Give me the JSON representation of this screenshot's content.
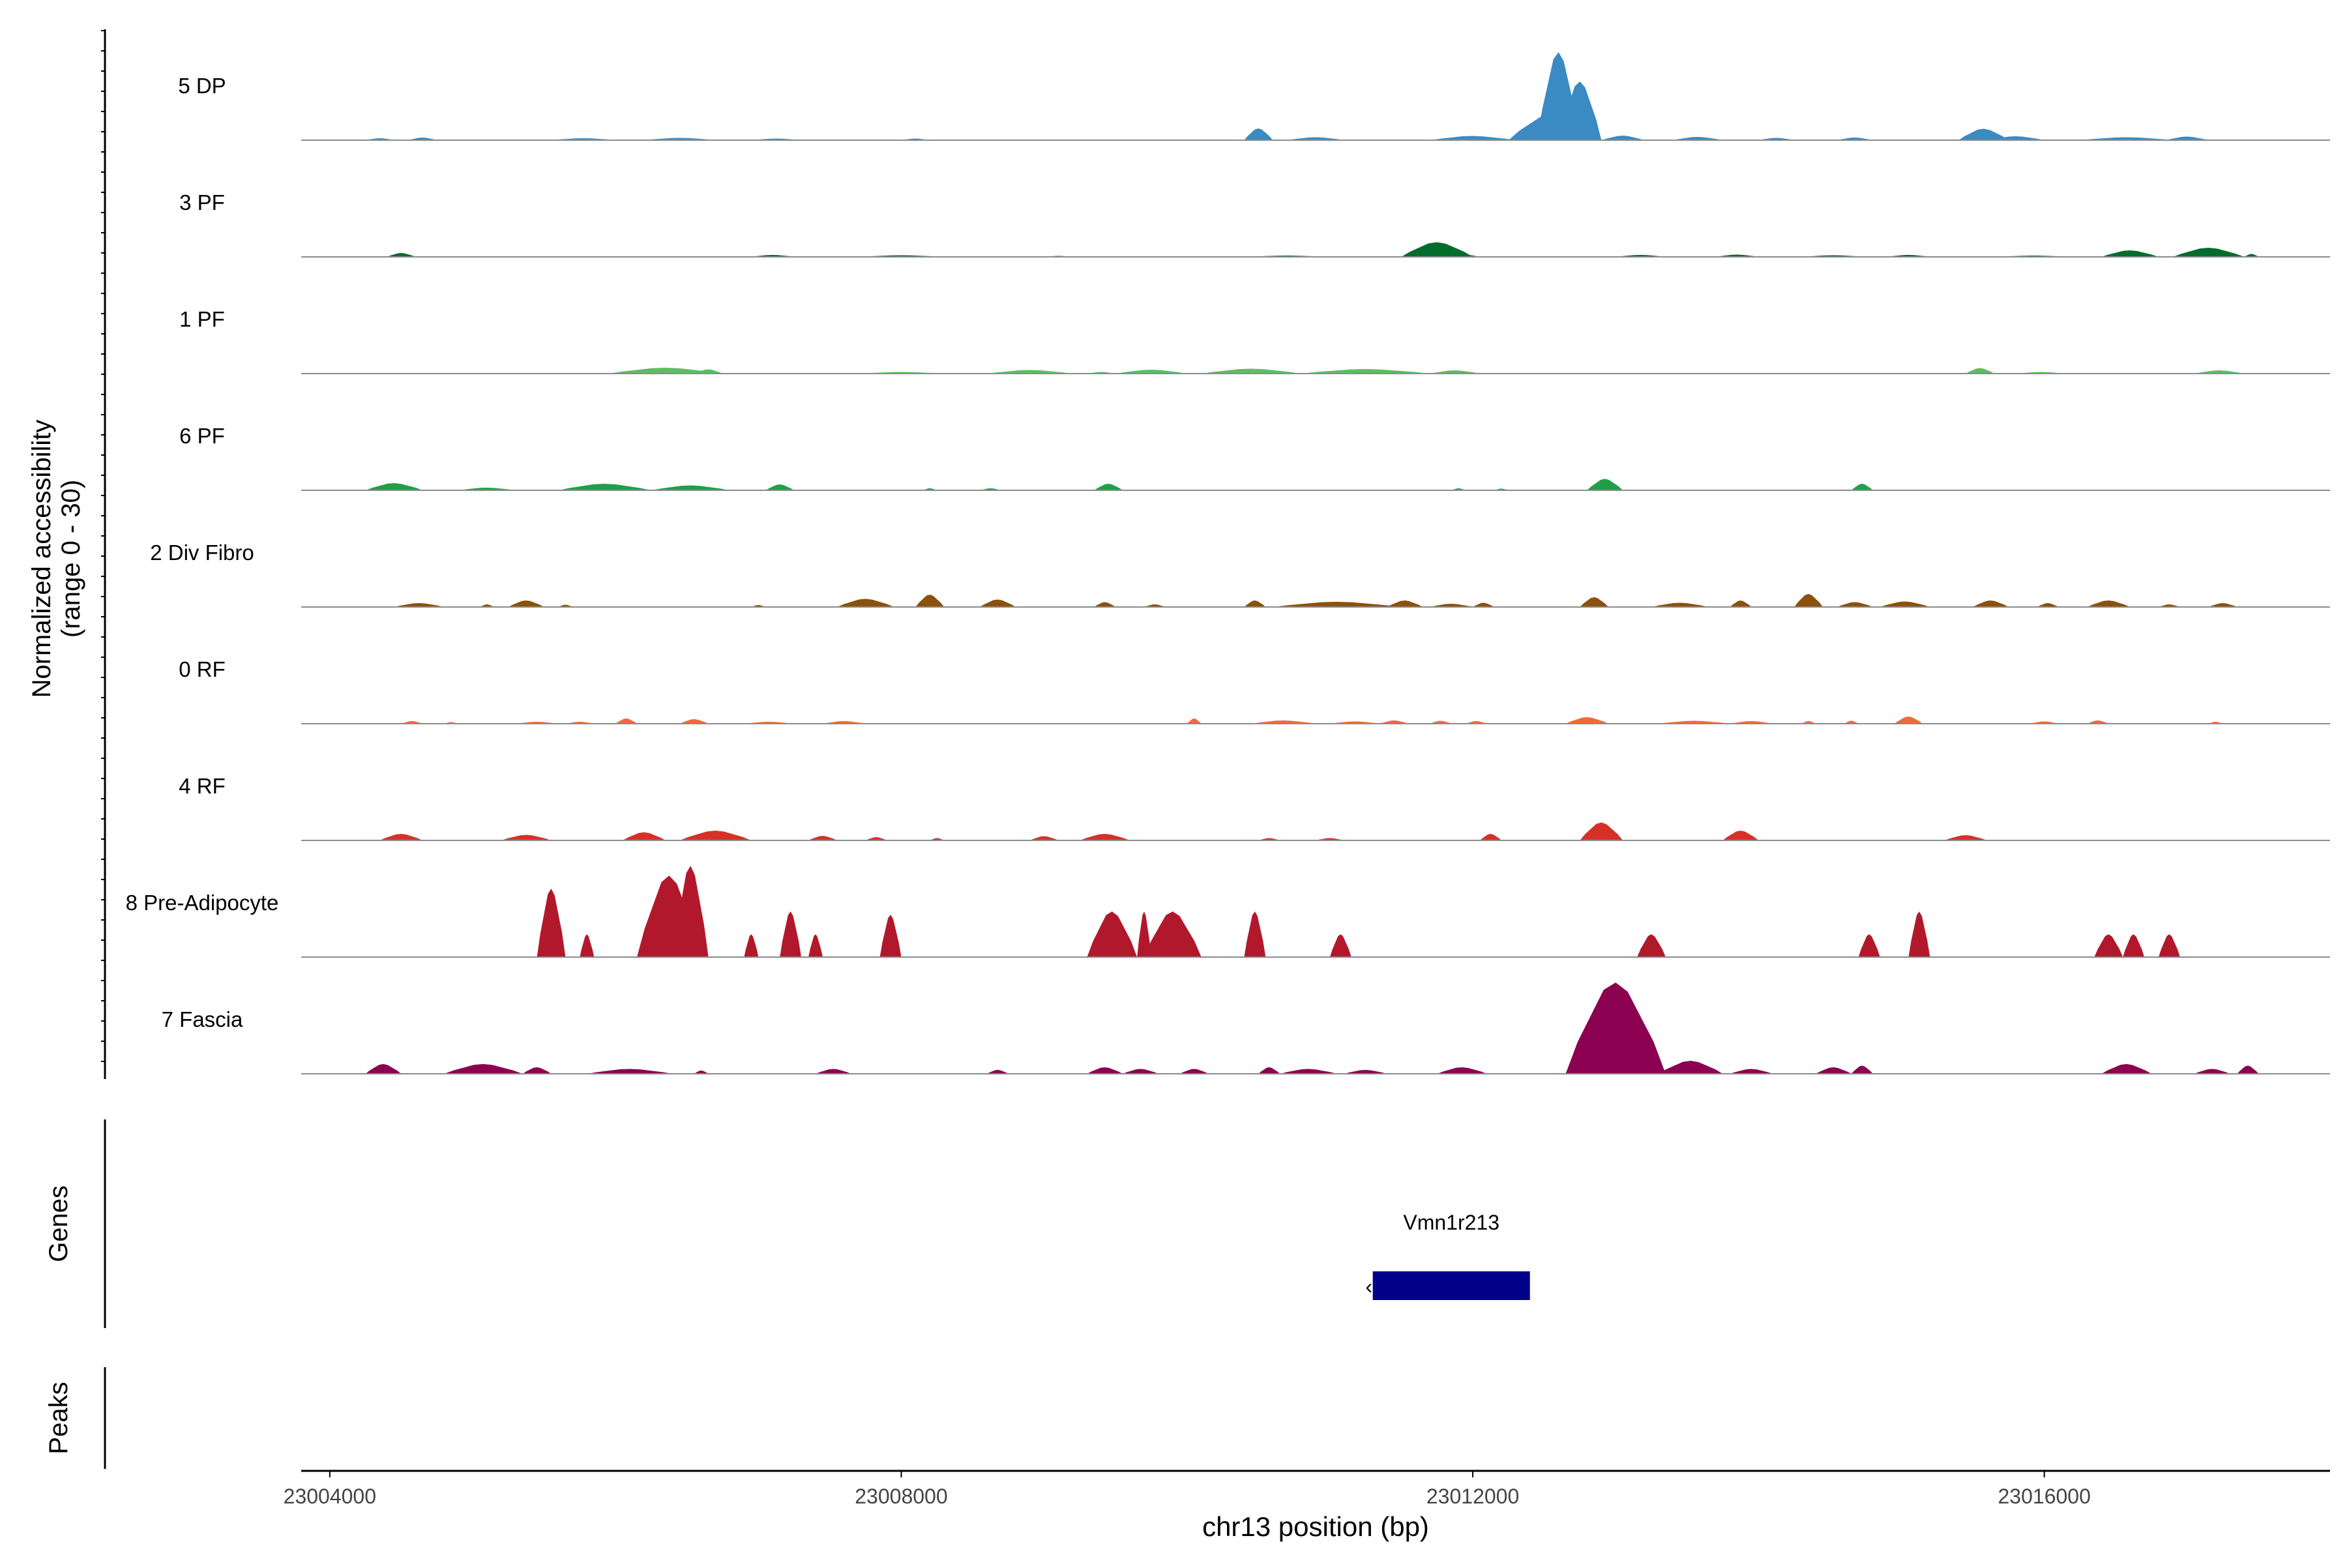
{
  "chart_data": {
    "type": "area",
    "ylabel_line1": "Normalized accessibility",
    "ylabel_line2": "(range 0 - 30)",
    "y_range": [
      0,
      30
    ],
    "xlabel": "chr13 position (bp)",
    "x_range": [
      23003800,
      23018000
    ],
    "x_ticks": [
      {
        "value": 23004000,
        "label": "23004000"
      },
      {
        "value": 23008000,
        "label": "23008000"
      },
      {
        "value": 23012000,
        "label": "23012000"
      },
      {
        "value": 23016000,
        "label": "23016000"
      }
    ],
    "tracks_label": "Genes",
    "peaks_label": "Peaks",
    "tracks": [
      {
        "name": "5 DP",
        "color": "#3a8ac4",
        "peaks": [
          [
            23004250,
            23004450,
            0.6
          ],
          [
            23004550,
            23004750,
            0.8
          ],
          [
            23005550,
            23006000,
            0.6
          ],
          [
            23006200,
            23006700,
            0.7
          ],
          [
            23006950,
            23007300,
            0.5
          ],
          [
            23008000,
            23008200,
            0.5
          ],
          [
            23010400,
            23010600,
            3.6
          ],
          [
            23010700,
            23011100,
            0.9
          ],
          [
            23011700,
            23012300,
            1.3
          ],
          [
            23012250,
            23012900,
            8.5
          ],
          [
            23012450,
            23012750,
            27
          ],
          [
            23012600,
            23012900,
            18
          ],
          [
            23012900,
            23013200,
            1.4
          ],
          [
            23013400,
            23013750,
            1.0
          ],
          [
            23014000,
            23014250,
            0.7
          ],
          [
            23014550,
            23014800,
            0.8
          ],
          [
            23015400,
            23015750,
            3.5
          ],
          [
            23015600,
            23016000,
            1.2
          ],
          [
            23016250,
            23016900,
            0.9
          ],
          [
            23016850,
            23017150,
            1.1
          ]
        ]
      },
      {
        "name": "3 PF",
        "color": "#006d2c",
        "peaks": [
          [
            23004400,
            23004600,
            1.2
          ],
          [
            23006950,
            23007250,
            0.6
          ],
          [
            23007700,
            23008300,
            0.5
          ],
          [
            23009000,
            23009200,
            0.3
          ],
          [
            23010400,
            23011000,
            0.4
          ],
          [
            23011500,
            23012000,
            4.5
          ],
          [
            23011800,
            23012050,
            0.8
          ],
          [
            23013000,
            23013350,
            0.6
          ],
          [
            23013700,
            23014000,
            0.7
          ],
          [
            23014300,
            23014750,
            0.5
          ],
          [
            23014900,
            23015200,
            0.6
          ],
          [
            23015650,
            23016200,
            0.4
          ],
          [
            23016400,
            23016800,
            2.0
          ],
          [
            23016900,
            23017400,
            2.8
          ],
          [
            23017400,
            23017500,
            0.9
          ]
        ]
      },
      {
        "name": "1 PF",
        "color": "#5bbf60",
        "peaks": [
          [
            23005950,
            23006750,
            1.8
          ],
          [
            23006550,
            23006750,
            1.3
          ],
          [
            23007700,
            23008300,
            0.5
          ],
          [
            23008600,
            23009200,
            1.1
          ],
          [
            23009300,
            23009500,
            0.5
          ],
          [
            23009500,
            23010000,
            1.2
          ],
          [
            23010100,
            23010800,
            1.5
          ],
          [
            23010800,
            23011700,
            1.4
          ],
          [
            23011700,
            23012050,
            1.0
          ],
          [
            23015450,
            23015650,
            1.7
          ],
          [
            23015800,
            23016150,
            0.5
          ],
          [
            23017050,
            23017400,
            1.0
          ]
        ]
      },
      {
        "name": "6 PF",
        "color": "#229e49",
        "peaks": [
          [
            23004250,
            23004650,
            2.2
          ],
          [
            23004900,
            23005300,
            0.8
          ],
          [
            23005600,
            23006250,
            2.0
          ],
          [
            23006250,
            23006800,
            1.5
          ],
          [
            23007050,
            23007250,
            1.8
          ],
          [
            23008150,
            23008250,
            0.6
          ],
          [
            23008550,
            23008700,
            0.6
          ],
          [
            23009350,
            23009550,
            2.0
          ],
          [
            23011850,
            23011950,
            0.6
          ],
          [
            23012150,
            23012250,
            0.5
          ],
          [
            23012800,
            23013050,
            3.5
          ],
          [
            23014650,
            23014800,
            2.0
          ]
        ]
      },
      {
        "name": "2 Div Fibro",
        "color": "#8c510a",
        "peaks": [
          [
            23004450,
            23004800,
            1.2
          ],
          [
            23005050,
            23005150,
            0.8
          ],
          [
            23005250,
            23005500,
            2.0
          ],
          [
            23005600,
            23005700,
            0.7
          ],
          [
            23006950,
            23007050,
            0.6
          ],
          [
            23007550,
            23007950,
            2.5
          ],
          [
            23008100,
            23008300,
            3.8
          ],
          [
            23008550,
            23008800,
            2.3
          ],
          [
            23009350,
            23009500,
            1.5
          ],
          [
            23009700,
            23009850,
            0.8
          ],
          [
            23010400,
            23010550,
            2.0
          ],
          [
            23010600,
            23011500,
            1.6
          ],
          [
            23011400,
            23011650,
            2.0
          ],
          [
            23011700,
            23012000,
            1.0
          ],
          [
            23012000,
            23012150,
            1.3
          ],
          [
            23012750,
            23012950,
            3.0
          ],
          [
            23013250,
            23013650,
            1.3
          ],
          [
            23013800,
            23013950,
            2.0
          ],
          [
            23014250,
            23014450,
            4.0
          ],
          [
            23014550,
            23014800,
            1.5
          ],
          [
            23014850,
            23015200,
            1.7
          ],
          [
            23015500,
            23015750,
            2.0
          ],
          [
            23015950,
            23016100,
            1.2
          ],
          [
            23016300,
            23016600,
            2.0
          ],
          [
            23016800,
            23016950,
            0.8
          ],
          [
            23017150,
            23017350,
            1.2
          ]
        ]
      },
      {
        "name": "0 RF",
        "color": "#f16a3a",
        "peaks": [
          [
            23004500,
            23004650,
            0.8
          ],
          [
            23004800,
            23004900,
            0.5
          ],
          [
            23005300,
            23005600,
            0.6
          ],
          [
            23005650,
            23005850,
            0.6
          ],
          [
            23006000,
            23006150,
            1.6
          ],
          [
            23006450,
            23006650,
            1.4
          ],
          [
            23006900,
            23007250,
            0.6
          ],
          [
            23007450,
            23007750,
            0.8
          ],
          [
            23010000,
            23010100,
            1.6
          ],
          [
            23010450,
            23010900,
            1.0
          ],
          [
            23011000,
            23011350,
            0.7
          ],
          [
            23011350,
            23011550,
            1.0
          ],
          [
            23011700,
            23011850,
            0.9
          ],
          [
            23011950,
            23012100,
            0.8
          ],
          [
            23012650,
            23012950,
            2.0
          ],
          [
            23013300,
            23013800,
            0.9
          ],
          [
            23013800,
            23014100,
            0.8
          ],
          [
            23014300,
            23014400,
            0.8
          ],
          [
            23014600,
            23014700,
            0.9
          ],
          [
            23014950,
            23015150,
            2.2
          ],
          [
            23015900,
            23016100,
            0.7
          ],
          [
            23016300,
            23016450,
            1.0
          ],
          [
            23017150,
            23017250,
            0.6
          ]
        ]
      },
      {
        "name": "4 RF",
        "color": "#d73027",
        "peaks": [
          [
            23004350,
            23004650,
            2.0
          ],
          [
            23005200,
            23005550,
            1.7
          ],
          [
            23006050,
            23006350,
            2.5
          ],
          [
            23006450,
            23006950,
            3.0
          ],
          [
            23007350,
            23007550,
            1.4
          ],
          [
            23007750,
            23007900,
            1.0
          ],
          [
            23008200,
            23008300,
            0.7
          ],
          [
            23008900,
            23009100,
            1.3
          ],
          [
            23009250,
            23009600,
            2.0
          ],
          [
            23010500,
            23010650,
            0.7
          ],
          [
            23010900,
            23011100,
            0.7
          ],
          [
            23012050,
            23012200,
            2.0
          ],
          [
            23012750,
            23013050,
            5.5
          ],
          [
            23013750,
            23014000,
            3.0
          ],
          [
            23015300,
            23015600,
            1.6
          ]
        ]
      },
      {
        "name": "8 Pre-Adipocyte",
        "color": "#b2182b",
        "peaks": [
          [
            23005450,
            23005650,
            21
          ],
          [
            23005750,
            23005850,
            7
          ],
          [
            23006150,
            23006600,
            25
          ],
          [
            23006400,
            23006650,
            28
          ],
          [
            23006900,
            23007000,
            7
          ],
          [
            23007150,
            23007300,
            14
          ],
          [
            23007350,
            23007450,
            7
          ],
          [
            23007850,
            23008000,
            13
          ],
          [
            23009300,
            23009650,
            14
          ],
          [
            23009650,
            23009750,
            14
          ],
          [
            23009700,
            23010100,
            14
          ],
          [
            23010400,
            23010550,
            14
          ],
          [
            23011000,
            23011150,
            7
          ],
          [
            23013150,
            23013350,
            7
          ],
          [
            23014700,
            23014850,
            7
          ],
          [
            23015050,
            23015200,
            14
          ],
          [
            23016350,
            23016550,
            7
          ],
          [
            23016550,
            23016700,
            7
          ],
          [
            23016800,
            23016950,
            7
          ]
        ]
      },
      {
        "name": "7 Fascia",
        "color": "#8b0050",
        "peaks": [
          [
            23004250,
            23004500,
            3.0
          ],
          [
            23004800,
            23005350,
            3.0
          ],
          [
            23005350,
            23005550,
            2.0
          ],
          [
            23005800,
            23006400,
            1.5
          ],
          [
            23006550,
            23006650,
            1.0
          ],
          [
            23007400,
            23007650,
            1.5
          ],
          [
            23008600,
            23008750,
            1.2
          ],
          [
            23009300,
            23009550,
            2.0
          ],
          [
            23009550,
            23009800,
            1.5
          ],
          [
            23009950,
            23010150,
            1.5
          ],
          [
            23010500,
            23010650,
            2.0
          ],
          [
            23010650,
            23011050,
            1.5
          ],
          [
            23011100,
            23011400,
            1.2
          ],
          [
            23011750,
            23012100,
            2.0
          ],
          [
            23012650,
            23013350,
            28
          ],
          [
            23013300,
            23013750,
            4.0
          ],
          [
            23013800,
            23014100,
            1.5
          ],
          [
            23014400,
            23014650,
            2.0
          ],
          [
            23014650,
            23014800,
            2.5
          ],
          [
            23016400,
            23016750,
            3.0
          ],
          [
            23017050,
            23017300,
            1.5
          ],
          [
            23017350,
            23017500,
            2.5
          ]
        ]
      }
    ],
    "gene": {
      "name": "Vmn1r213",
      "start": 23011300,
      "end": 23012400,
      "strand": "-",
      "color": "#00008b"
    }
  }
}
